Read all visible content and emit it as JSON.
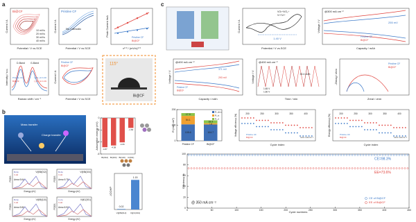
{
  "a": {
    "label": "a",
    "cv_scan": {
      "tag": "Bi@CF",
      "x_label": "Potential / V vs.SCE",
      "y_label": "Current / A",
      "legend": [
        "10 mV/s",
        "20 mV/s",
        "30 mV/s",
        "40 mV/s"
      ]
    },
    "cv_pristine": {
      "tag": "Pristine CF",
      "note": "No Cathodic",
      "x_label": "Potential / V vs.SCE",
      "y_label": "Current / A"
    },
    "peak": {
      "x_label": "v¹ᐟ² / (mV/s)¹ᐟ²",
      "y_label": "Peak Current /mA",
      "legend": [
        "Pristine CF",
        "Bi@CF"
      ]
    },
    "raman": {
      "bands": [
        "D-Band",
        "G-Band"
      ],
      "ratios": [
        "I_D/I_G=1.00",
        "I_D/I_G=1.09"
      ],
      "legend": [
        "Pristine CF",
        "Bi@CF"
      ],
      "x_label": "Raman shift / cm⁻¹",
      "y_label": "Intensity / a.u."
    },
    "cv_compare": {
      "legend": [
        "Pristine CF",
        "Bi@CF"
      ],
      "x_label": "Potential / V vs.SCE",
      "y_label": "Current / A"
    },
    "contact": {
      "angle": "115°",
      "tag": "Bi@CF"
    }
  },
  "b": {
    "label": "b",
    "schematic": {
      "labels": [
        "Mass transfer",
        "Charge transfer"
      ]
    },
    "adsorption": {
      "y_label": "Adsorption energy (eV)",
      "categories": [
        "Bi(012)",
        "Bi(104)",
        "Bi(110)",
        "C(001)"
      ],
      "values": [
        -4.87,
        -4.58,
        -4.06,
        -1.66
      ],
      "ylim": [
        -6,
        0
      ],
      "yticks": [
        -6,
        -4,
        -2,
        0
      ],
      "color": "#e0504a"
    },
    "pdos": [
      {
        "legend": [
          "Bi-6p",
          "V-3d"
        ],
        "title": "V@Bi(012)",
        "area": "Area=9.64"
      },
      {
        "legend": [
          "Bi-6p",
          "V-3d"
        ],
        "title": "V@Bi(104)",
        "area": "Area=9.75"
      },
      {
        "legend": [
          "Bi-6p",
          "V-3d"
        ],
        "title": "V@Bi(110)",
        "area": "Area=9.80"
      },
      {
        "legend": [
          "C-2p",
          "V-3d"
        ],
        "title": "V@C(001)",
        "area": "Area=5.92"
      }
    ],
    "pdos_x_label": "Energy (eV)",
    "pdos_y_label": "PDOS",
    "icohp": {
      "y_label": "-ICOHP",
      "categories": [
        "V@Bi(012)",
        "V@C(001)"
      ],
      "values": [
        0.02,
        1.15
      ],
      "ylim": [
        0,
        1.4
      ],
      "color": "#4a86d0"
    }
  },
  "c": {
    "label": "c",
    "cv": {
      "labels": [
        "VO²⁺/VO₂⁺",
        "V³⁺/V²⁺"
      ],
      "gap": "1.40 V",
      "x_label": "Potential / V vs.SCE",
      "y_label": "Current / A"
    },
    "charge300": {
      "rate": "@300 mA cm⁻²",
      "delta": "255 mV",
      "legend": [
        "Pristine CF",
        "Bi@CF"
      ],
      "x_label": "Capacity / mAh",
      "y_label": "Voltage / V"
    },
    "charge400": {
      "rate": "@400 mA cm⁻²",
      "deltas": [
        "371 mV",
        "293 mV"
      ],
      "legend": [
        "Pristine CF",
        "Bi@CF"
      ],
      "x_label": "Capacity / mAh",
      "y_label": "Voltage / V"
    },
    "time400": {
      "rate": "@400 mA cm⁻²",
      "delta": "30.4 mAh",
      "legend": [
        "1.65 V",
        "1.60 V"
      ],
      "x_label": "Time / min",
      "y_label": "Voltage / V"
    },
    "eis": {
      "legend": [
        "Pristine CF",
        "Bi@CF"
      ],
      "x_label": "Zreal / ohm",
      "y_label": "-Zimag / ohm"
    },
    "resistance": {
      "type": "bar",
      "y_label": "R (mΩ cm²)",
      "categories": [
        "Pristine CF",
        "Bi@CF"
      ],
      "series": [
        {
          "name": "R_ohm",
          "color": "#3f6fb5",
          "values": [
            105.6,
            104.7
          ]
        },
        {
          "name": "R_ct",
          "color": "#f0a030",
          "values": [
            54.1,
            7.8
          ]
        },
        {
          "name": "R_d",
          "color": "#8bc34a",
          "values": [
            17.9,
            18.9
          ]
        }
      ],
      "ylim": [
        0,
        200
      ],
      "yticks": [
        0,
        100,
        200
      ]
    },
    "efficiency": {
      "rates": [
        "200",
        "250",
        "300",
        "350",
        "400"
      ],
      "legend": [
        "Pristine CF",
        "Bi@CF"
      ],
      "unit": "Unit: mA cm⁻²",
      "x_label": "Cycle index",
      "ve_label": "Voltage efficiency (%)",
      "ee_label": "Energy efficiency (%)"
    },
    "cycle": {
      "rate": "@ 350 mA cm⁻²",
      "ce": {
        "label": "CE=98.3%",
        "value": 98.3
      },
      "ee": {
        "label": "EE=73.6%",
        "value": 73.6
      },
      "legend": [
        "CE of Bi@CF",
        "EE of Bi@CF"
      ],
      "x_label": "Cycle numbers",
      "y_label": "Efficiency %",
      "xlim": [
        0,
        450
      ],
      "xticks": [
        0,
        50,
        100,
        150,
        200,
        250,
        300,
        350,
        400,
        450
      ],
      "ylim": [
        0,
        100
      ],
      "yticks": [
        0,
        20,
        40,
        60,
        80,
        100
      ]
    }
  }
}
